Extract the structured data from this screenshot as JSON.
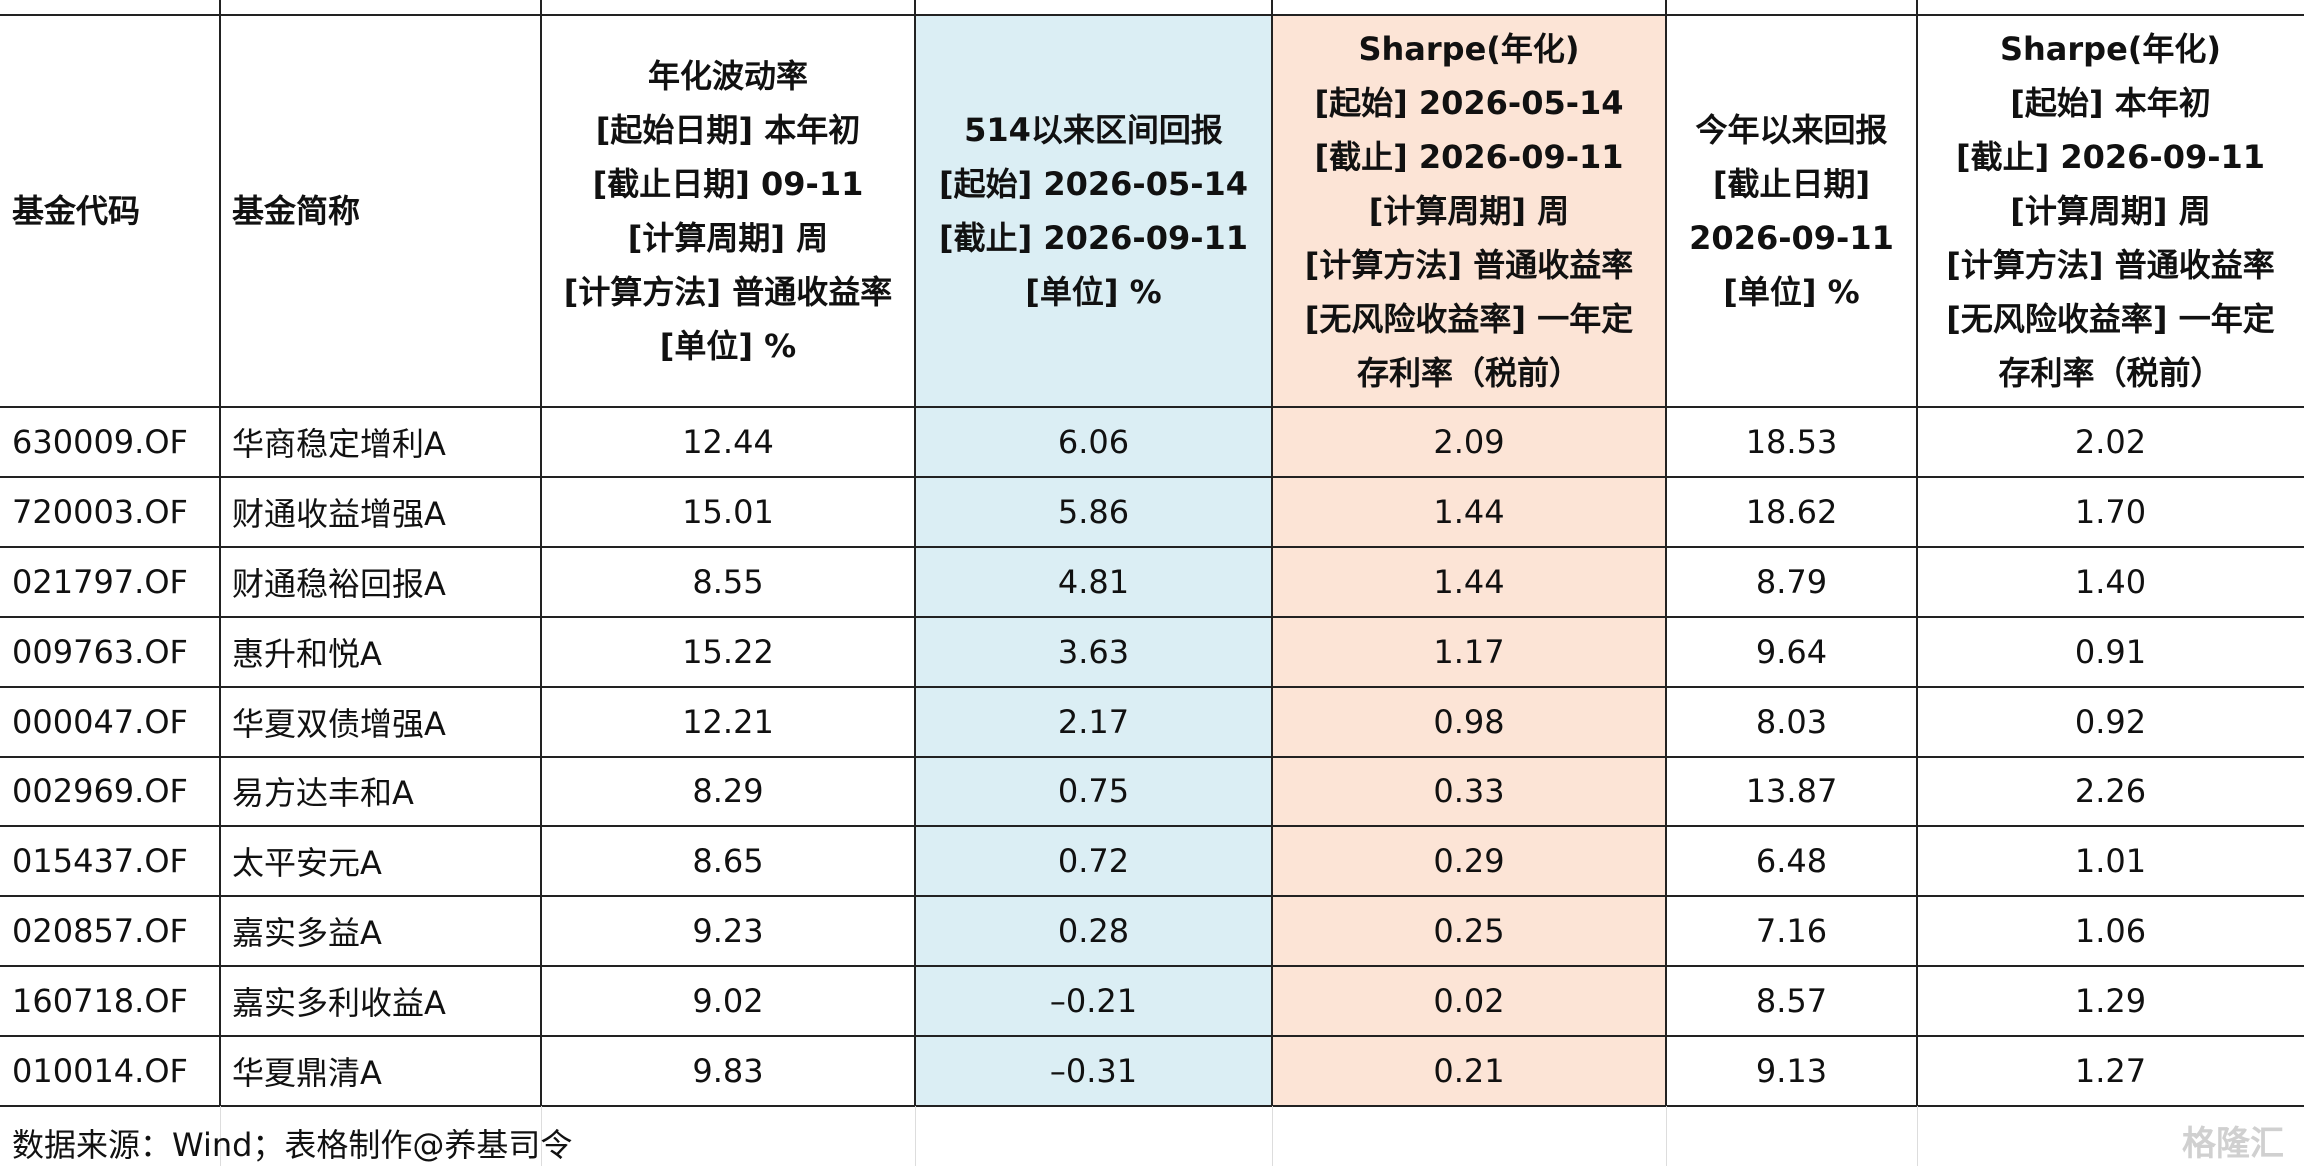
{
  "table": {
    "headers": [
      [
        "基金代码"
      ],
      [
        "基金简称"
      ],
      [
        "年化波动率",
        "[起始日期] 本年初",
        "[截止日期] 09-11",
        "[计算周期] 周",
        "[计算方法] 普通收益率",
        "[单位] %"
      ],
      [
        "514以来区间回报",
        "[起始] 2026-05-14",
        "[截止] 2026-09-11",
        "[单位] %"
      ],
      [
        "Sharpe(年化)",
        "[起始] 2026-05-14",
        "[截止] 2026-09-11",
        "[计算周期] 周",
        "[计算方法] 普通收益率",
        "[无风险收益率] 一年定",
        "存利率（税前）"
      ],
      [
        "今年以来回报",
        "[截止日期]",
        "2026-09-11",
        "[单位] %"
      ],
      [
        "Sharpe(年化)",
        "[起始] 本年初",
        "[截止] 2026-09-11",
        "[计算周期] 周",
        "[计算方法] 普通收益率",
        "[无风险收益率] 一年定",
        "存利率（税前）"
      ]
    ],
    "rows": [
      [
        "630009.OF",
        "华商稳定增利A",
        "12.44",
        "6.06",
        "2.09",
        "18.53",
        "2.02"
      ],
      [
        "720003.OF",
        "财通收益增强A",
        "15.01",
        "5.86",
        "1.44",
        "18.62",
        "1.70"
      ],
      [
        "021797.OF",
        "财通稳裕回报A",
        "8.55",
        "4.81",
        "1.44",
        "8.79",
        "1.40"
      ],
      [
        "009763.OF",
        "惠升和悦A",
        "15.22",
        "3.63",
        "1.17",
        "9.64",
        "0.91"
      ],
      [
        "000047.OF",
        "华夏双债增强A",
        "12.21",
        "2.17",
        "0.98",
        "8.03",
        "0.92"
      ],
      [
        "002969.OF",
        "易方达丰和A",
        "8.29",
        "0.75",
        "0.33",
        "13.87",
        "2.26"
      ],
      [
        "015437.OF",
        "太平安元A",
        "8.65",
        "0.72",
        "0.29",
        "6.48",
        "1.01"
      ],
      [
        "020857.OF",
        "嘉实多益A",
        "9.23",
        "0.28",
        "0.25",
        "7.16",
        "1.06"
      ],
      [
        "160718.OF",
        "嘉实多利收益A",
        "9.02",
        "–0.21",
        "0.02",
        "8.57",
        "1.29"
      ],
      [
        "010014.OF",
        "华夏鼎清A",
        "9.83",
        "–0.31",
        "0.21",
        "9.13",
        "1.27"
      ]
    ],
    "footer": "数据来源：Wind；表格制作@养基司令",
    "watermark": "格隆汇"
  }
}
